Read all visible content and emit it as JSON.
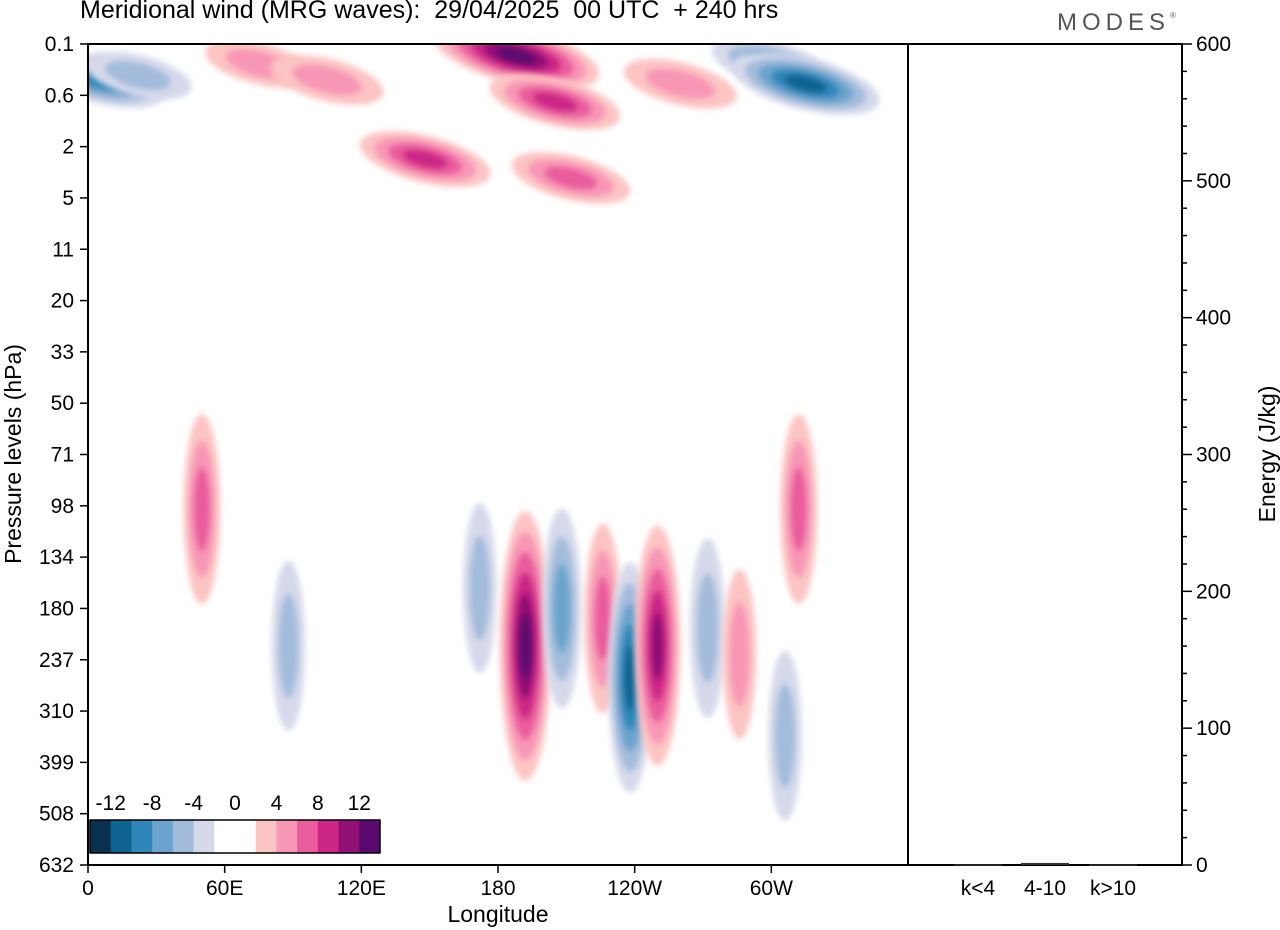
{
  "title": "Meridional wind (MRG waves):  29/04/2025  00 UTC  + 240 hrs",
  "brand": "MODES",
  "brand_mark": "®",
  "chart_data": [
    {
      "type": "heatmap",
      "title": "Meridional wind (MRG waves):  29/04/2025  00 UTC  + 240 hrs",
      "xlabel": "Longitude",
      "ylabel": "Pressure levels (hPa)",
      "x_ticks": [
        "0",
        "60E",
        "120E",
        "180",
        "120W",
        "60W"
      ],
      "y_ticks": [
        "0.1",
        "0.6",
        "2",
        "5",
        "11",
        "20",
        "33",
        "50",
        "71",
        "98",
        "134",
        "180",
        "237",
        "310",
        "399",
        "508",
        "632"
      ],
      "colorbar": {
        "labels": [
          "-12",
          "-8",
          "-4",
          "0",
          "4",
          "8",
          "12"
        ],
        "colors": [
          "#08304f",
          "#0e6492",
          "#2f86b9",
          "#6ba4cc",
          "#a3bcdc",
          "#d5d9ea",
          "#ffffff",
          "#ffffff",
          "#fcc4c3",
          "#f896b6",
          "#ea5c9c",
          "#cc2686",
          "#931077",
          "#5a0a6e"
        ]
      },
      "features": [
        {
          "sign": "neg",
          "lon": 5,
          "lev": 0.35,
          "amp": 7
        },
        {
          "sign": "neg",
          "lon": 22,
          "lev": 0.3,
          "amp": 3
        },
        {
          "sign": "pos",
          "lon": 75,
          "lev": 0.2,
          "amp": 3
        },
        {
          "sign": "pos",
          "lon": 105,
          "lev": 0.35,
          "amp": 4
        },
        {
          "sign": "pos",
          "lon": 148,
          "lev": 2.5,
          "amp": 7
        },
        {
          "sign": "pos",
          "lon": 188,
          "lev": 0.15,
          "amp": 13
        },
        {
          "sign": "pos",
          "lon": 205,
          "lev": 0.7,
          "amp": 7
        },
        {
          "sign": "pos",
          "lon": 212,
          "lev": 3.5,
          "amp": 5
        },
        {
          "sign": "pos",
          "lon": 260,
          "lev": 0.4,
          "amp": 4
        },
        {
          "sign": "neg",
          "lon": 300,
          "lev": 0.2,
          "amp": 5
        },
        {
          "sign": "neg",
          "lon": 315,
          "lev": 0.4,
          "amp": 10
        },
        {
          "sign": "pos",
          "lon": 50,
          "lev": 100,
          "amp": 5
        },
        {
          "sign": "neg",
          "lon": 88,
          "lev": 220,
          "amp": 3
        },
        {
          "sign": "neg",
          "lon": 172,
          "lev": 160,
          "amp": 3
        },
        {
          "sign": "pos",
          "lon": 192,
          "lev": 220,
          "amp": 13
        },
        {
          "sign": "neg",
          "lon": 208,
          "lev": 180,
          "amp": 6
        },
        {
          "sign": "pos",
          "lon": 226,
          "lev": 190,
          "amp": 5
        },
        {
          "sign": "neg",
          "lon": 238,
          "lev": 260,
          "amp": 9
        },
        {
          "sign": "pos",
          "lon": 250,
          "lev": 220,
          "amp": 10
        },
        {
          "sign": "neg",
          "lon": 272,
          "lev": 200,
          "amp": 4
        },
        {
          "sign": "pos",
          "lon": 286,
          "lev": 230,
          "amp": 3
        },
        {
          "sign": "neg",
          "lon": 306,
          "lev": 350,
          "amp": 3
        },
        {
          "sign": "pos",
          "lon": 312,
          "lev": 100,
          "amp": 5
        }
      ]
    },
    {
      "type": "bar",
      "ylabel": "Energy (J/kg)",
      "categories": [
        "k<4",
        "4-10",
        "k>10"
      ],
      "values": [
        0.5,
        1.5,
        0.5
      ],
      "ylim": [
        0,
        600
      ],
      "y_ticks": [
        "0",
        "100",
        "200",
        "300",
        "400",
        "500",
        "600"
      ]
    }
  ]
}
